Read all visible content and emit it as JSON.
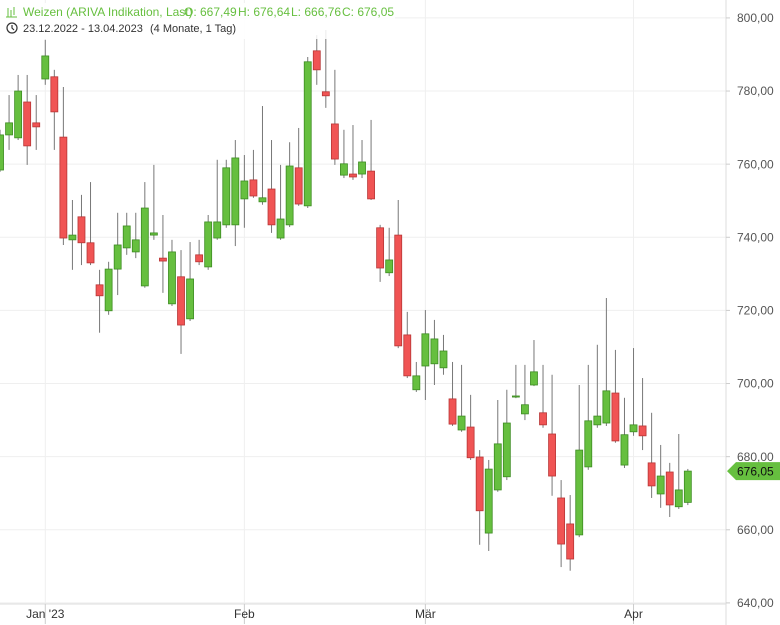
{
  "chart_data": {
    "type": "candlestick",
    "title": "Weizen (ARIVA Indikation, Last)",
    "ohlc_labels": [
      "O: 667,49",
      "H: 676,64",
      "L: 666,76",
      "C: 676,05"
    ],
    "date_range": "23.12.2022 - 13.04.2023",
    "duration": "(4 Monate, 1 Tag)",
    "last_label": "676,05",
    "up_color": "#66bf3f",
    "down_color": "#f05454",
    "categories": [
      null,
      null,
      null,
      null,
      null,
      "Jan '23",
      null,
      null,
      null,
      null,
      null,
      null,
      null,
      null,
      null,
      null,
      null,
      null,
      null,
      null,
      null,
      null,
      null,
      null,
      null,
      null,
      null,
      "Feb",
      null,
      null,
      null,
      null,
      null,
      null,
      null,
      null,
      null,
      null,
      null,
      null,
      null,
      null,
      null,
      null,
      null,
      null,
      null,
      "Mär",
      null,
      null,
      null,
      null,
      null,
      null,
      null,
      null,
      null,
      null,
      null,
      null,
      null,
      null,
      null,
      null,
      null,
      null,
      null,
      null,
      null,
      null,
      "Apr",
      null,
      null,
      null,
      null,
      null,
      null
    ],
    "open": [
      758.4,
      768.0,
      767.2,
      777.0,
      771.3,
      783.3,
      783.9,
      767.4,
      739.3,
      745.6,
      738.5,
      727.0,
      719.9,
      731.3,
      737.1,
      736.0,
      726.7,
      740.6,
      734.3,
      721.8,
      729.2,
      717.7,
      735.2,
      731.9,
      739.8,
      743.4,
      743.4,
      750.5,
      755.7,
      749.7,
      753.2,
      739.8,
      743.4,
      759.0,
      748.6,
      791.0,
      779.8,
      771.0,
      757.0,
      757.3,
      757.3,
      758.1,
      742.6,
      730.3,
      740.6,
      713.3,
      698.3,
      704.8,
      705.4,
      704.3,
      695.8,
      687.3,
      688.1,
      679.9,
      659.1,
      670.9,
      674.5,
      696.3,
      691.7,
      699.6,
      692.0,
      686.2,
      668.7,
      661.6,
      658.6,
      677.2,
      688.7,
      689.2,
      697.4,
      677.7,
      686.8,
      688.4,
      678.3,
      669.8,
      675.8,
      666.3,
      667.49
    ],
    "high": [
      769.4,
      778.9,
      784.4,
      784.4,
      778.9,
      794.0,
      785.8,
      781.1,
      750.2,
      751.6,
      755.1,
      731.1,
      733.3,
      746.7,
      746.7,
      746.7,
      755.1,
      759.8,
      746.1,
      739.3,
      736.5,
      738.7,
      739.3,
      746.1,
      761.2,
      761.2,
      766.6,
      762.5,
      763.9,
      775.9,
      766.6,
      759.8,
      766.0,
      769.9,
      789.3,
      795.3,
      796.7,
      785.8,
      769.4,
      770.7,
      766.6,
      772.1,
      743.4,
      742.6,
      750.2,
      719.6,
      705.9,
      720.1,
      717.4,
      713.3,
      705.9,
      705.1,
      696.9,
      681.8,
      679.1,
      695.5,
      698.3,
      705.1,
      705.1,
      711.9,
      705.1,
      702.4,
      673.6,
      669.5,
      699.6,
      705.1,
      710.6,
      723.4,
      709.2,
      696.1,
      709.7,
      701.5,
      692.0,
      683.2,
      678.3,
      686.2,
      676.64
    ],
    "low": [
      757.9,
      763.9,
      766.6,
      759.8,
      763.9,
      781.7,
      763.9,
      737.9,
      731.1,
      732.4,
      732.4,
      713.9,
      718.8,
      724.2,
      735.2,
      734.3,
      726.2,
      739.3,
      724.8,
      721.2,
      708.1,
      717.1,
      732.4,
      731.1,
      739.3,
      742.6,
      737.6,
      742.6,
      750.8,
      748.9,
      741.2,
      739.3,
      742.8,
      748.6,
      748.0,
      781.7,
      775.4,
      759.8,
      756.2,
      755.7,
      756.2,
      750.2,
      727.8,
      729.4,
      709.7,
      701.5,
      697.7,
      695.5,
      699.6,
      702.4,
      688.4,
      686.8,
      679.1,
      655.9,
      654.2,
      670.4,
      673.6,
      696.0,
      690.0,
      699.3,
      687.9,
      669.3,
      649.8,
      648.8,
      658.0,
      676.4,
      687.9,
      688.4,
      683.8,
      676.9,
      685.7,
      681.8,
      668.7,
      666.0,
      663.5,
      665.7,
      666.76
    ],
    "close": [
      768.0,
      771.3,
      780.0,
      765.0,
      770.2,
      789.6,
      774.3,
      739.8,
      740.6,
      738.5,
      733.0,
      724.0,
      731.3,
      737.9,
      743.1,
      739.3,
      748.0,
      741.2,
      733.5,
      736.0,
      716.0,
      728.6,
      733.3,
      744.2,
      744.2,
      759.0,
      761.7,
      755.4,
      751.3,
      750.8,
      743.4,
      745.0,
      759.5,
      749.1,
      788.0,
      785.8,
      778.7,
      761.4,
      760.1,
      756.5,
      760.6,
      750.5,
      731.6,
      733.8,
      710.3,
      702.1,
      702.1,
      713.6,
      712.2,
      708.9,
      688.9,
      691.1,
      679.7,
      665.2,
      676.6,
      683.5,
      689.2,
      696.6,
      694.2,
      703.2,
      688.7,
      674.7,
      656.1,
      652.0,
      681.8,
      689.8,
      691.1,
      698.0,
      684.3,
      686.0,
      688.7,
      685.7,
      672.0,
      674.7,
      666.8,
      670.9,
      676.05
    ],
    "ylim": [
      639.7,
      804.9
    ],
    "yticks": [
      {
        "value": 640,
        "label": "640,00"
      },
      {
        "value": 660,
        "label": "660,00"
      },
      {
        "value": 680,
        "label": "680,00"
      },
      {
        "value": 700,
        "label": "700,00"
      },
      {
        "value": 720,
        "label": "720,00"
      },
      {
        "value": 740,
        "label": "740,00"
      },
      {
        "value": 760,
        "label": "760,00"
      },
      {
        "value": 780,
        "label": "780,00"
      },
      {
        "value": 800,
        "label": "800,00"
      }
    ],
    "grid": true
  }
}
